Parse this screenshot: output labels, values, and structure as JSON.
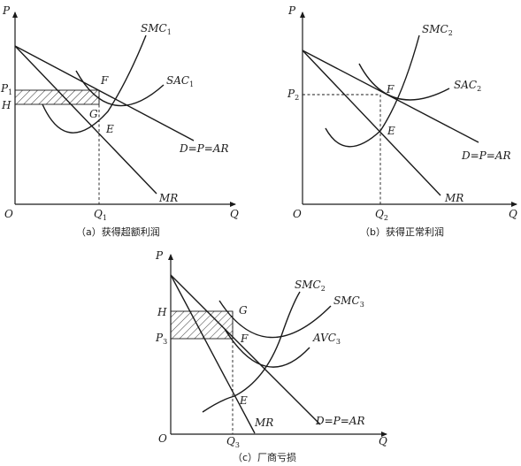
{
  "panels": {
    "a": {
      "caption": "（a）获得超额利润",
      "axis_p": "P",
      "axis_q": "Q",
      "origin": "O",
      "smc": {
        "main": "SMC",
        "sub": "1"
      },
      "sac": {
        "main": "SAC",
        "sub": "1"
      },
      "demand": "D=P=AR",
      "mr": "MR",
      "point_f": "F",
      "point_g": "G",
      "point_e": "E",
      "price": {
        "main": "P",
        "sub": "1"
      },
      "cost": "H",
      "qty": {
        "main": "Q",
        "sub": "1"
      }
    },
    "b": {
      "caption": "（b）获得正常利润",
      "axis_p": "P",
      "axis_q": "Q",
      "origin": "O",
      "smc": {
        "main": "SMC",
        "sub": "2"
      },
      "sac": {
        "main": "SAC",
        "sub": "2"
      },
      "demand": "D=P=AR",
      "mr": "MR",
      "point_f": "F",
      "point_e": "E",
      "price": {
        "main": "P",
        "sub": "2"
      },
      "qty": {
        "main": "Q",
        "sub": "2"
      }
    },
    "c": {
      "caption": "（c）厂商亏损",
      "axis_p": "P",
      "axis_q": "Q",
      "origin": "O",
      "smc": {
        "main": "SMC",
        "sub": "2"
      },
      "sac": {
        "main": "SMC",
        "sub": "3"
      },
      "avc": {
        "main": "AVC",
        "sub": "3"
      },
      "demand": "D=P=AR",
      "mr": "MR",
      "point_g": "G",
      "point_f": "F",
      "point_e": "E",
      "cost": "H",
      "price": {
        "main": "P",
        "sub": "3"
      },
      "qty": {
        "main": "Q",
        "sub": "3"
      }
    }
  }
}
